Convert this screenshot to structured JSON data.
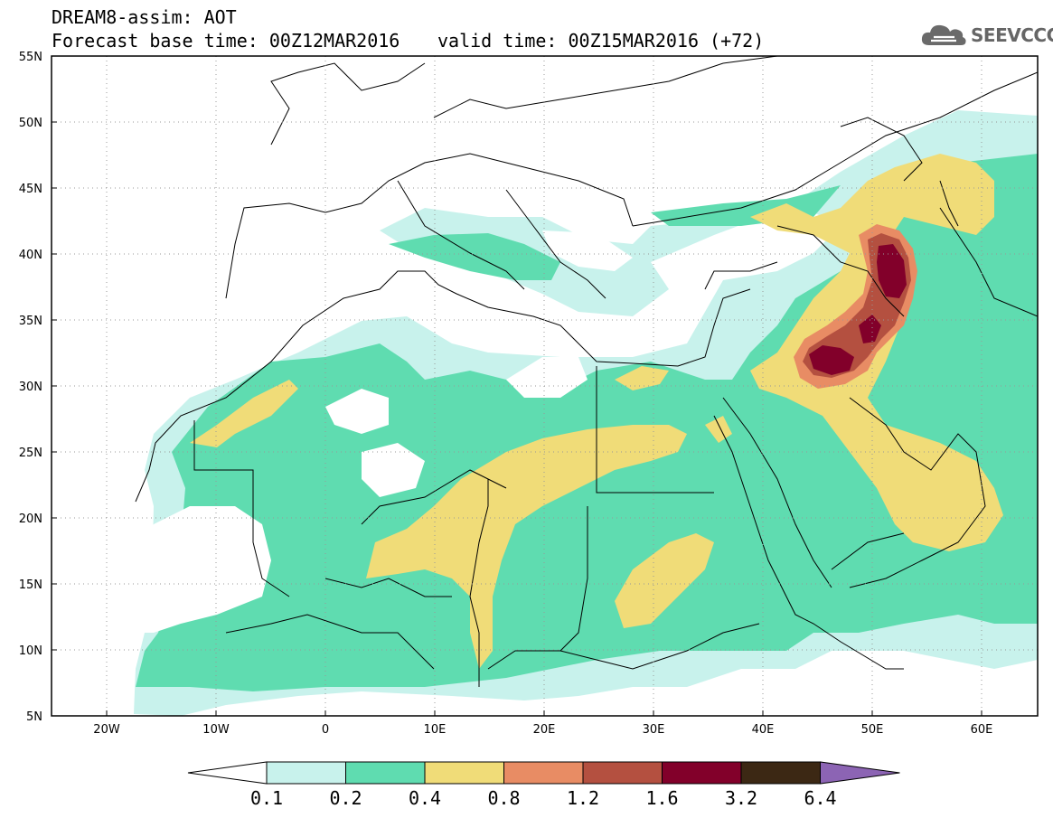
{
  "header": {
    "line1": "DREAM8-assim: AOT",
    "line2": "Forecast base time: 00Z12MAR2016",
    "line3": "valid time: 00Z15MAR2016 (+72)"
  },
  "logo": {
    "text": "SEEVCCC",
    "icon": "cloud-icon"
  },
  "axes": {
    "lat_labels": [
      "55N",
      "50N",
      "45N",
      "40N",
      "35N",
      "30N",
      "25N",
      "20N",
      "15N",
      "10N",
      "5N"
    ],
    "lon_labels": [
      "20W",
      "10W",
      "0",
      "10E",
      "20E",
      "30E",
      "40E",
      "50E",
      "60E"
    ],
    "lat_range": [
      5,
      55
    ],
    "lon_range": [
      -25,
      65
    ]
  },
  "colorbar": {
    "ticks": [
      "0.1",
      "0.2",
      "0.4",
      "0.8",
      "1.2",
      "1.6",
      "3.2",
      "6.4"
    ],
    "colors": [
      "#c8f2ec",
      "#5fdcb0",
      "#f0dc78",
      "#e88c64",
      "#b45040",
      "#82002a",
      "#3c2814",
      "#8c64b4"
    ],
    "under_color": "#ffffff"
  }
}
